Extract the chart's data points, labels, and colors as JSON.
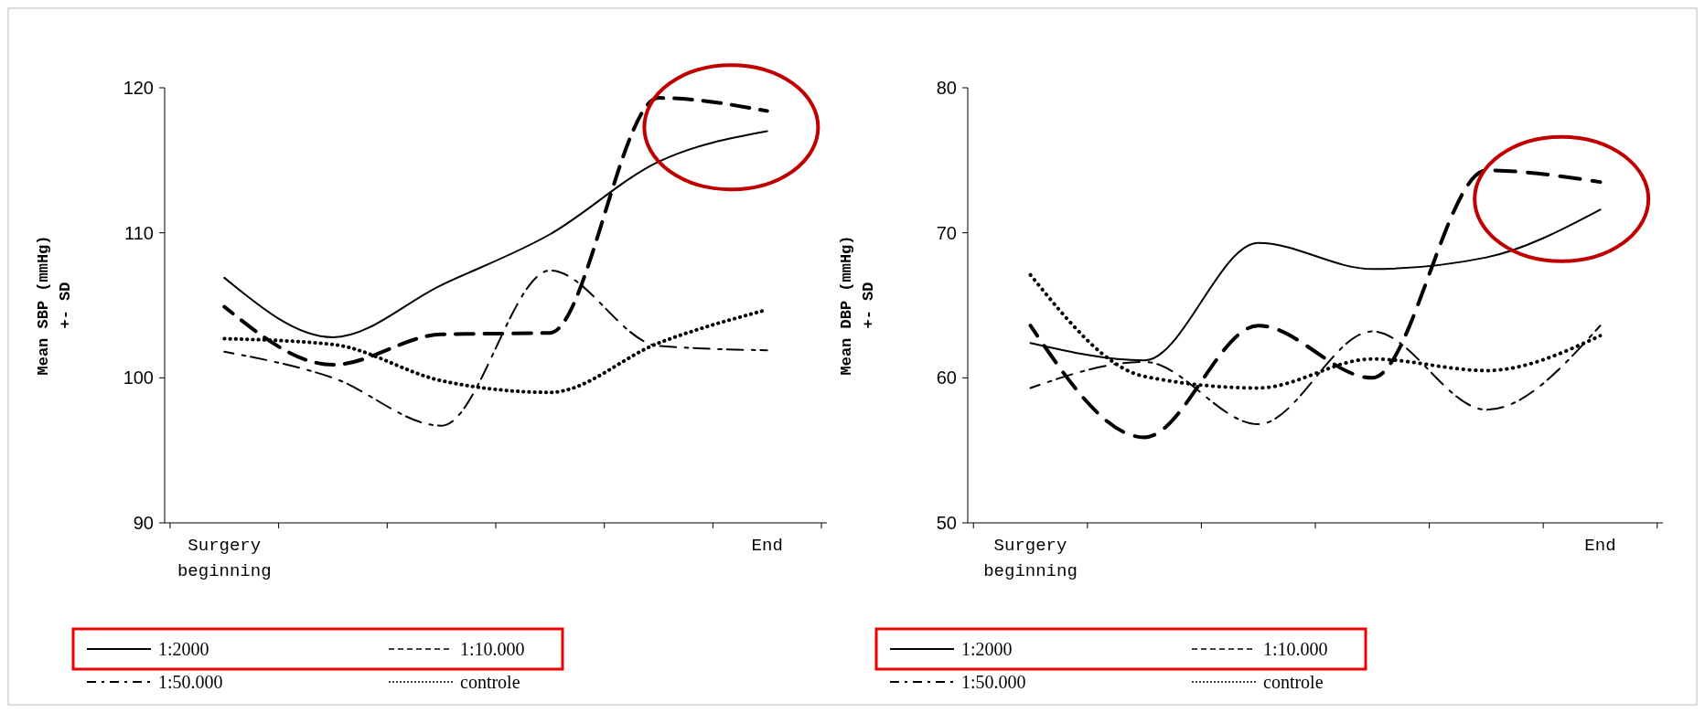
{
  "chart_data": [
    {
      "type": "line",
      "ylabel": "Mean SBP (mmHg)\n+- SD",
      "categories": [
        "Surgery beginning",
        null,
        null,
        null,
        null,
        "End"
      ],
      "ylim": [
        90,
        120
      ],
      "yticks": [
        90,
        100,
        110,
        120
      ],
      "legend": "bottom",
      "series": [
        {
          "name": "1:2000",
          "color": "#000000",
          "line_style": "solid",
          "values": [
            106.9,
            102.8,
            106.4,
            109.9,
            114.9,
            117.0
          ]
        },
        {
          "name": "1:10.000",
          "color": "#000000",
          "line_style": "dashed",
          "values": [
            104.9,
            100.9,
            103.0,
            103.1,
            119.3,
            118.4
          ]
        },
        {
          "name": "1:50.000",
          "color": "#000000",
          "line_style": "dashdot",
          "values": [
            101.8,
            100.0,
            96.7,
            107.4,
            102.2,
            101.9
          ]
        },
        {
          "name": "controle",
          "color": "#000000",
          "line_style": "dotted",
          "values": [
            102.7,
            102.3,
            99.8,
            99.0,
            102.4,
            104.7
          ]
        }
      ]
    },
    {
      "type": "line",
      "ylabel": "Mean DBP (mmHg)\n+- SD",
      "categories": [
        "Surgery beginning",
        null,
        null,
        null,
        null,
        "End"
      ],
      "ylim": [
        50,
        80
      ],
      "yticks": [
        50,
        60,
        70,
        80
      ],
      "legend": "bottom",
      "series": [
        {
          "name": "1:2000",
          "color": "#000000",
          "line_style": "solid",
          "values": [
            62.4,
            61.2,
            69.3,
            67.5,
            68.3,
            71.6
          ]
        },
        {
          "name": "1:10.000",
          "color": "#000000",
          "line_style": "dashed",
          "values": [
            63.6,
            55.9,
            63.6,
            60.0,
            74.3,
            73.5
          ]
        },
        {
          "name": "1:50.000",
          "color": "#000000",
          "line_style": "dashdot",
          "values": [
            59.3,
            61.1,
            56.8,
            63.2,
            57.8,
            63.6
          ]
        },
        {
          "name": "controle",
          "color": "#000000",
          "line_style": "dotted",
          "values": [
            67.1,
            60.1,
            59.3,
            61.3,
            60.5,
            62.9
          ]
        }
      ]
    }
  ]
}
